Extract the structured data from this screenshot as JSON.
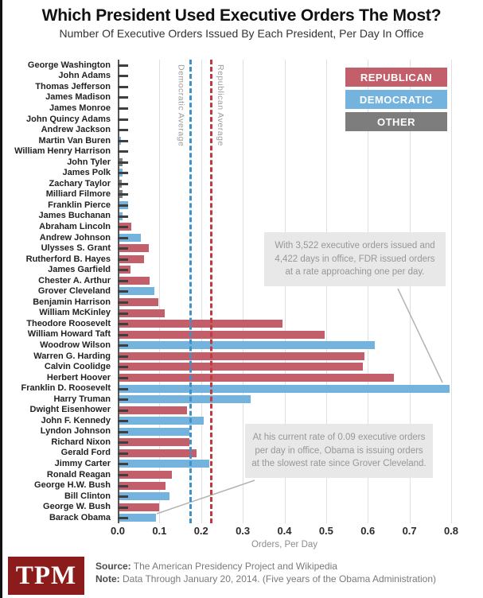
{
  "header": {
    "title": "Which President Used Executive Orders The Most?",
    "subtitle": "Number Of Executive Orders Issued By Each President, Per Day In Office"
  },
  "colors": {
    "republican": "#c25f6a",
    "democratic": "#74b3dd",
    "other": "#7d7d7d",
    "republican_line": "#c13a40",
    "democratic_line": "#4191c9",
    "annotation_bg": "#e9e9e9",
    "tpm_red": "#8c1b1b"
  },
  "legend": [
    {
      "label": "REPUBLICAN",
      "party": "republican"
    },
    {
      "label": "DEMOCRATIC",
      "party": "democratic"
    },
    {
      "label": "OTHER",
      "party": "other"
    }
  ],
  "chart_data": {
    "type": "bar",
    "orientation": "horizontal",
    "xlabel": "Orders, Per Day",
    "xlim": [
      0,
      0.8
    ],
    "xticks": [
      0.0,
      0.1,
      0.2,
      0.3,
      0.4,
      0.5,
      0.6,
      0.7,
      0.8
    ],
    "grid": true,
    "reference_lines": [
      {
        "label": "Democratic Average",
        "value": 0.175,
        "party": "democratic"
      },
      {
        "label": "Republican Average",
        "value": 0.225,
        "party": "republican"
      }
    ],
    "presidents": [
      {
        "name": "George Washington",
        "party": "other",
        "orders_per_day": 0.003
      },
      {
        "name": "John Adams",
        "party": "other",
        "orders_per_day": 0.001
      },
      {
        "name": "Thomas Jefferson",
        "party": "other",
        "orders_per_day": 0.001
      },
      {
        "name": "James Madison",
        "party": "other",
        "orders_per_day": 0.0005
      },
      {
        "name": "James Monroe",
        "party": "other",
        "orders_per_day": 0.0005
      },
      {
        "name": "John Quincy Adams",
        "party": "other",
        "orders_per_day": 0.002
      },
      {
        "name": "Andrew Jackson",
        "party": "democratic",
        "orders_per_day": 0.004
      },
      {
        "name": "Martin Van Buren",
        "party": "democratic",
        "orders_per_day": 0.007
      },
      {
        "name": "William Henry Harrison",
        "party": "other",
        "orders_per_day": 0.0
      },
      {
        "name": "John Tyler",
        "party": "other",
        "orders_per_day": 0.012
      },
      {
        "name": "James Polk",
        "party": "democratic",
        "orders_per_day": 0.012
      },
      {
        "name": "Zachary Taylor",
        "party": "other",
        "orders_per_day": 0.01
      },
      {
        "name": "Milliard Filmore",
        "party": "other",
        "orders_per_day": 0.012
      },
      {
        "name": "Franklin Pierce",
        "party": "democratic",
        "orders_per_day": 0.024
      },
      {
        "name": "James Buchanan",
        "party": "democratic",
        "orders_per_day": 0.011
      },
      {
        "name": "Abraham Lincoln",
        "party": "republican",
        "orders_per_day": 0.032
      },
      {
        "name": "Andrew Johnson",
        "party": "democratic",
        "orders_per_day": 0.056
      },
      {
        "name": "Ulysses S. Grant",
        "party": "republican",
        "orders_per_day": 0.074
      },
      {
        "name": "Rutherford B. Hayes",
        "party": "republican",
        "orders_per_day": 0.063
      },
      {
        "name": "James Garfield",
        "party": "republican",
        "orders_per_day": 0.03
      },
      {
        "name": "Chester A. Arthur",
        "party": "republican",
        "orders_per_day": 0.076
      },
      {
        "name": "Grover Cleveland",
        "party": "democratic",
        "orders_per_day": 0.087
      },
      {
        "name": "Benjamin Harrison",
        "party": "republican",
        "orders_per_day": 0.098
      },
      {
        "name": "William McKinley",
        "party": "republican",
        "orders_per_day": 0.112
      },
      {
        "name": "Theodore Roosevelt",
        "party": "republican",
        "orders_per_day": 0.396
      },
      {
        "name": "William Howard Taft",
        "party": "republican",
        "orders_per_day": 0.496
      },
      {
        "name": "Woodrow Wilson",
        "party": "democratic",
        "orders_per_day": 0.617
      },
      {
        "name": "Warren G. Harding",
        "party": "republican",
        "orders_per_day": 0.592
      },
      {
        "name": "Calvin Coolidge",
        "party": "republican",
        "orders_per_day": 0.589
      },
      {
        "name": "Herbert Hoover",
        "party": "republican",
        "orders_per_day": 0.663
      },
      {
        "name": "Franklin D. Roosevelt",
        "party": "democratic",
        "orders_per_day": 0.796
      },
      {
        "name": "Harry Truman",
        "party": "democratic",
        "orders_per_day": 0.319
      },
      {
        "name": "Dwight Eisenhower",
        "party": "republican",
        "orders_per_day": 0.166
      },
      {
        "name": "John F. Kennedy",
        "party": "democratic",
        "orders_per_day": 0.207
      },
      {
        "name": "Lyndon Johnson",
        "party": "democratic",
        "orders_per_day": 0.172
      },
      {
        "name": "Richard Nixon",
        "party": "republican",
        "orders_per_day": 0.171
      },
      {
        "name": "Gerald Ford",
        "party": "republican",
        "orders_per_day": 0.189
      },
      {
        "name": "Jimmy Carter",
        "party": "democratic",
        "orders_per_day": 0.219
      },
      {
        "name": "Ronald Reagan",
        "party": "republican",
        "orders_per_day": 0.13
      },
      {
        "name": "George H.W. Bush",
        "party": "republican",
        "orders_per_day": 0.114
      },
      {
        "name": "Bill Clinton",
        "party": "democratic",
        "orders_per_day": 0.125
      },
      {
        "name": "George W. Bush",
        "party": "republican",
        "orders_per_day": 0.1
      },
      {
        "name": "Barack Obama",
        "party": "democratic",
        "orders_per_day": 0.091
      }
    ]
  },
  "annotations": {
    "fdr": "With 3,522 executive orders issued and 4,422 days in office, FDR issued orders at a rate approaching one per day.",
    "obama": "At his current rate of 0.09 executive orders per day in office, Obama is issuing orders at the slowest rate since Grover Cleveland."
  },
  "footer": {
    "logo": "TPM",
    "source_label": "Source:",
    "source_text": " The American Presidency Project and Wikipedia",
    "note_label": "Note:",
    "note_text": " Data Through January 20, 2014. (Five years of the Obama Administration)"
  }
}
